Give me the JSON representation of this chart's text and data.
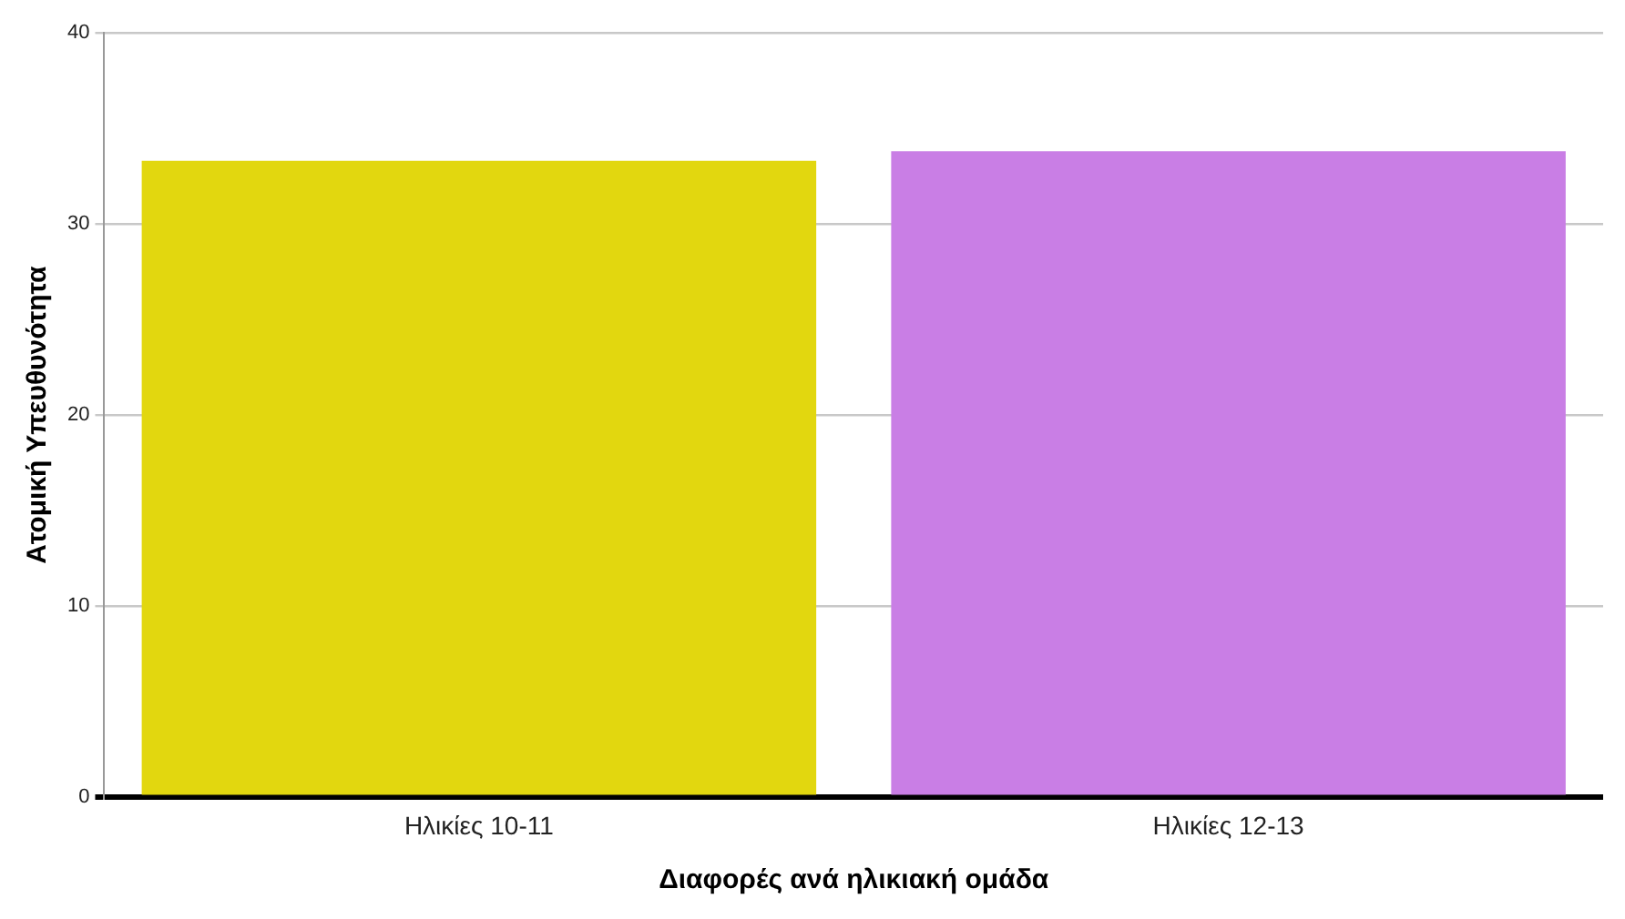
{
  "chart_data": {
    "type": "bar",
    "xlabel": "Διαφορές ανά ηλικιακή ομάδα",
    "ylabel": "Ατομική Υπευθυνότητα",
    "categories": [
      "Ηλικίες 10-11",
      "Ηλικίες 12-13"
    ],
    "values": [
      33.3,
      33.8
    ],
    "colors": [
      "#e2d70f",
      "#c97ee5"
    ],
    "ylim": [
      0,
      40
    ],
    "yticks": [
      0,
      10,
      20,
      30,
      40
    ],
    "grid": "y",
    "legend": false
  }
}
